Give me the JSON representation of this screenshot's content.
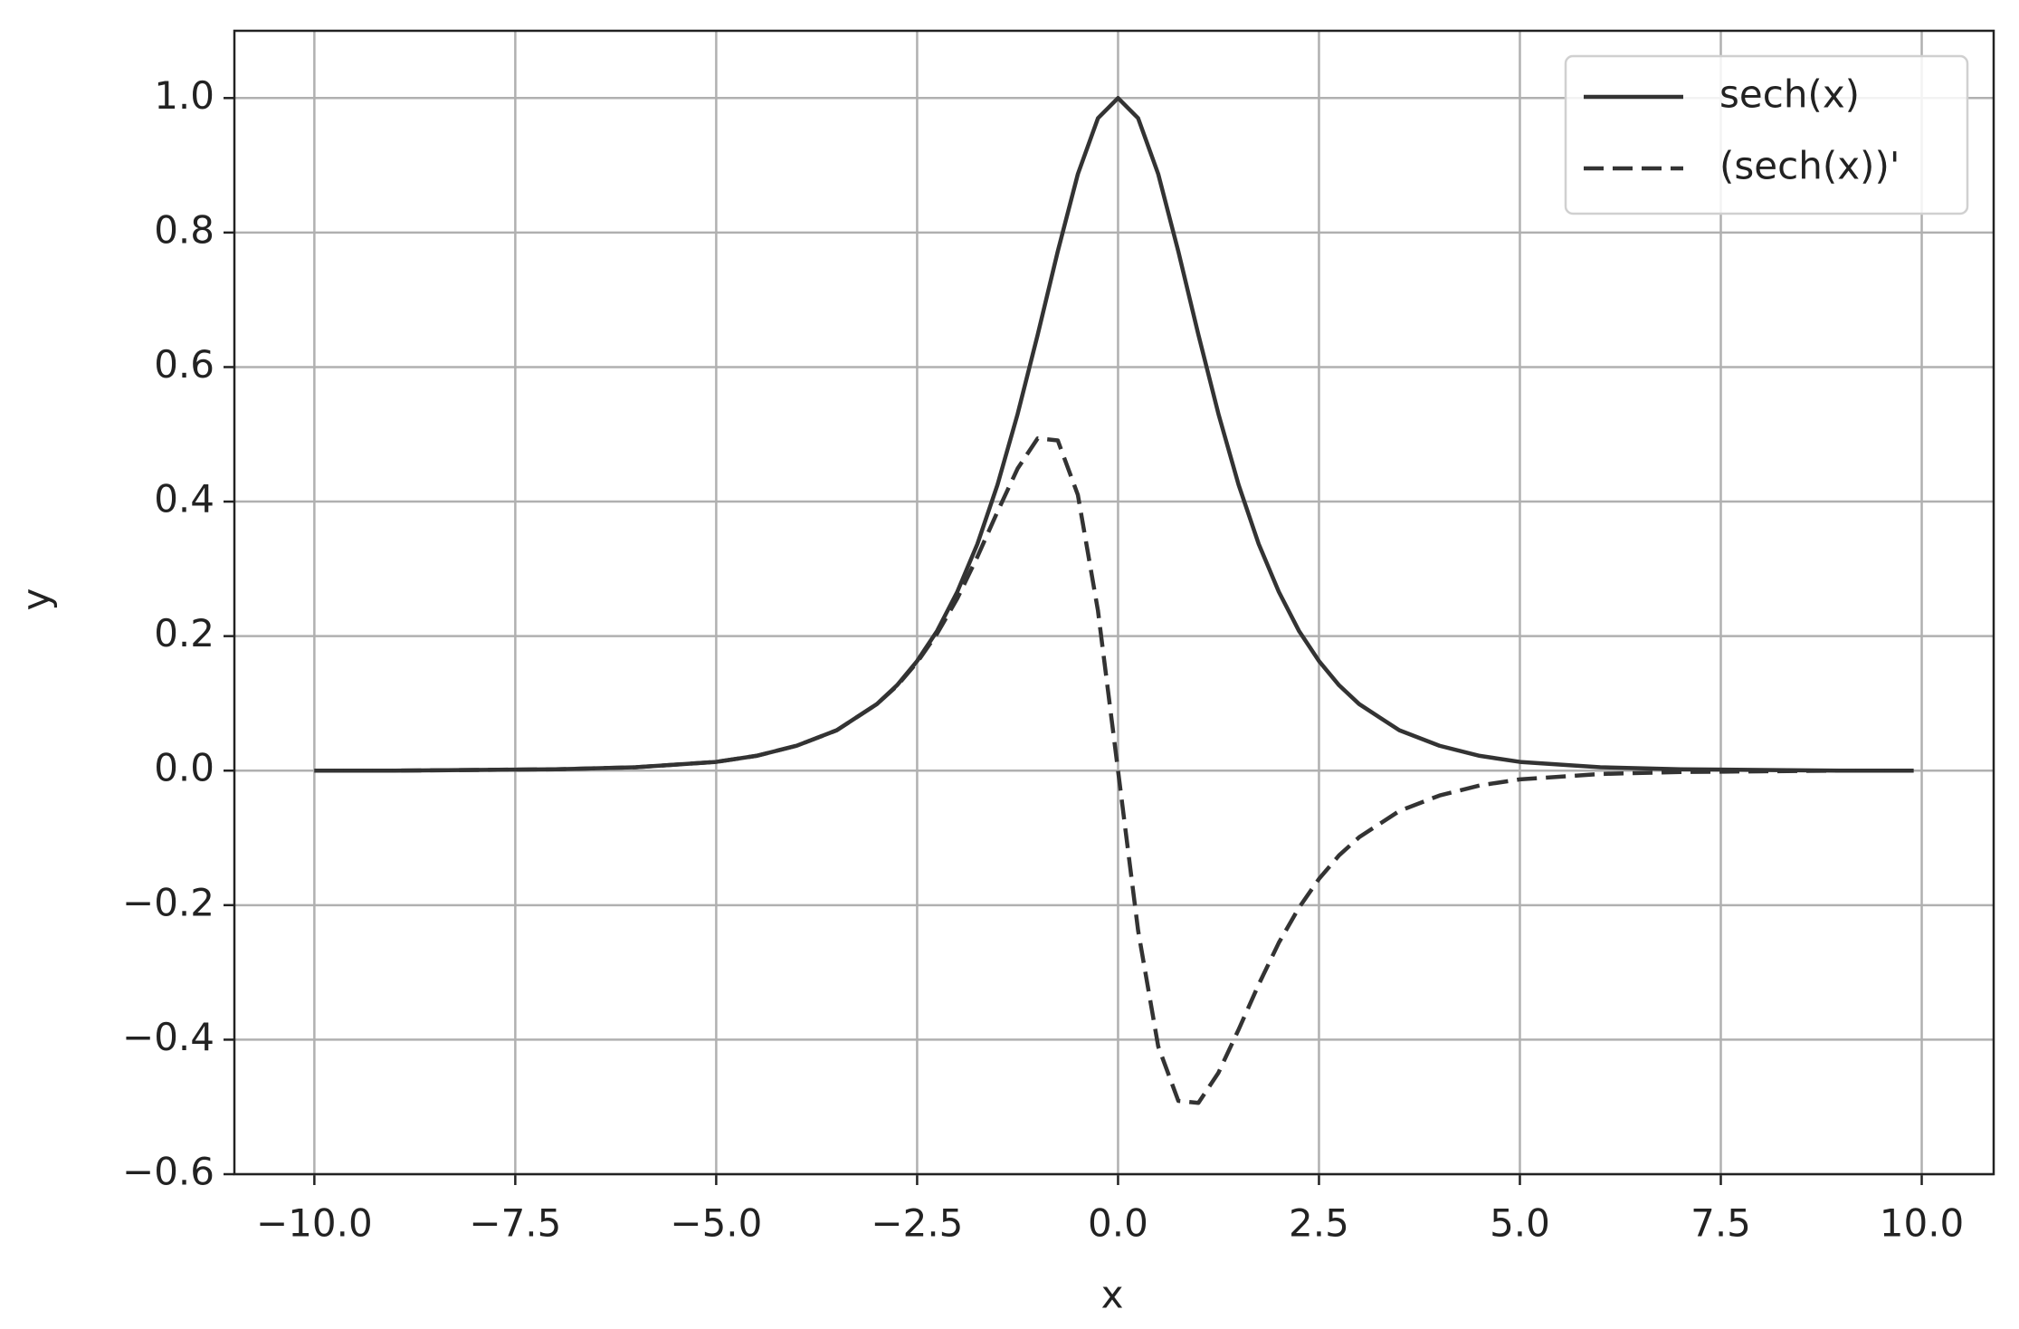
{
  "chart_data": {
    "type": "line",
    "x_label": "x",
    "y_label": "y",
    "x": [
      -10,
      -9,
      -8,
      -7,
      -6,
      -5,
      -4.5,
      -4,
      -3.5,
      -3,
      -2.75,
      -2.5,
      -2.25,
      -2,
      -1.75,
      -1.5,
      -1.25,
      -1,
      -0.75,
      -0.5,
      -0.25,
      0,
      0.25,
      0.5,
      0.75,
      1,
      1.25,
      1.5,
      1.75,
      2,
      2.25,
      2.5,
      2.75,
      3,
      3.5,
      4,
      4.5,
      5,
      6,
      7,
      8,
      9,
      9.9
    ],
    "series": [
      {
        "name": "sech(x)",
        "color": "#333333",
        "linestyle": "solid",
        "values": [
          0.0,
          0.0,
          0.001,
          0.002,
          0.005,
          0.013,
          0.022,
          0.037,
          0.06,
          0.099,
          0.127,
          0.163,
          0.208,
          0.266,
          0.337,
          0.425,
          0.53,
          0.648,
          0.772,
          0.887,
          0.97,
          1.0,
          0.97,
          0.887,
          0.772,
          0.648,
          0.53,
          0.425,
          0.337,
          0.266,
          0.208,
          0.163,
          0.127,
          0.099,
          0.06,
          0.037,
          0.022,
          0.013,
          0.005,
          0.002,
          0.001,
          0.0,
          0.0
        ]
      },
      {
        "name": "(sech(x))'",
        "color": "#333333",
        "linestyle": "dashed",
        "values": [
          0.0,
          0.0,
          0.001,
          0.002,
          0.005,
          0.013,
          0.022,
          0.037,
          0.06,
          0.099,
          0.126,
          0.161,
          0.204,
          0.256,
          0.318,
          0.385,
          0.449,
          0.494,
          0.491,
          0.41,
          0.238,
          0,
          -0.238,
          -0.41,
          -0.491,
          -0.494,
          -0.449,
          -0.385,
          -0.318,
          -0.256,
          -0.204,
          -0.161,
          -0.126,
          -0.099,
          -0.06,
          -0.037,
          -0.022,
          -0.013,
          -0.005,
          -0.002,
          -0.001,
          0.0,
          0.0
        ]
      }
    ],
    "xlim": [
      -10.995,
      10.895
    ],
    "ylim": [
      -0.6,
      1.1
    ],
    "xticks": [
      {
        "value": -10,
        "label": "−10.0"
      },
      {
        "value": -7.5,
        "label": "−7.5"
      },
      {
        "value": -5,
        "label": "−5.0"
      },
      {
        "value": -2.5,
        "label": "−2.5"
      },
      {
        "value": 0,
        "label": "0.0"
      },
      {
        "value": 2.5,
        "label": "2.5"
      },
      {
        "value": 5,
        "label": "5.0"
      },
      {
        "value": 7.5,
        "label": "7.5"
      },
      {
        "value": 10,
        "label": "10.0"
      }
    ],
    "yticks": [
      {
        "value": -0.6,
        "label": "−0.6"
      },
      {
        "value": -0.4,
        "label": "−0.4"
      },
      {
        "value": -0.2,
        "label": "−0.2"
      },
      {
        "value": 0,
        "label": "0.0"
      },
      {
        "value": 0.2,
        "label": "0.2"
      },
      {
        "value": 0.4,
        "label": "0.4"
      },
      {
        "value": 0.6,
        "label": "0.6"
      },
      {
        "value": 0.8,
        "label": "0.8"
      },
      {
        "value": 1.0,
        "label": "1.0"
      }
    ],
    "grid": true,
    "legend": "upper right"
  }
}
